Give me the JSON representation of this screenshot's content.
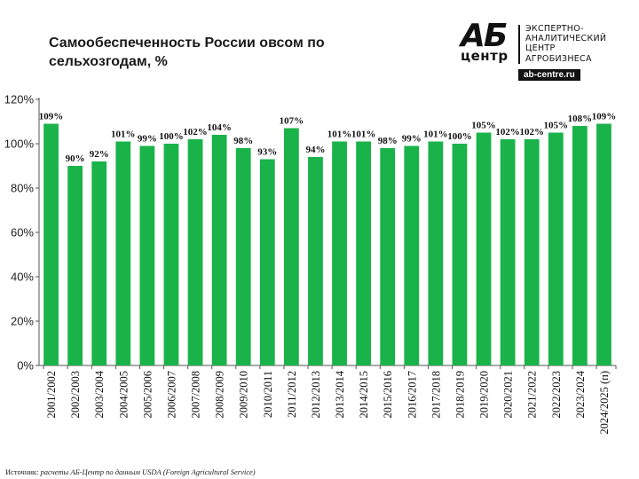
{
  "title": "Самообеспеченность России овсом по сельхозгодам, %",
  "logo": {
    "mark_letters": "АБ",
    "mark_word": "центр",
    "lines": [
      "ЭКСПЕРТНО-",
      "АНАЛИТИЧЕСКИЙ",
      "ЦЕНТР",
      "АГРОБИЗНЕСА"
    ],
    "site": "ab-centre.ru"
  },
  "source": {
    "label": "Источник:",
    "text": "расчеты АБ-Центр по данным USDA (Foreign Agricultural Service)"
  },
  "colors": {
    "bar": "#1ab34a",
    "axis": "#555555",
    "label": "#111111"
  },
  "chart_data": {
    "type": "bar",
    "categories": [
      "2001/2002",
      "2002/2003",
      "2003/2004",
      "2004/2005",
      "2005/2006",
      "2006/2007",
      "2007/2008",
      "2008/2009",
      "2009/2010",
      "2010/2011",
      "2011/2012",
      "2012/2013",
      "2013/2014",
      "2014/2015",
      "2015/2016",
      "2016/2017",
      "2017/2018",
      "2018/2019",
      "2019/2020",
      "2020/2021",
      "2021/2022",
      "2022/2023",
      "2023/2024",
      "2024/2025 (п)"
    ],
    "values": [
      109,
      90,
      92,
      101,
      99,
      100,
      102,
      104,
      98,
      93,
      107,
      94,
      101,
      101,
      98,
      99,
      101,
      100,
      105,
      102,
      102,
      105,
      108,
      109
    ],
    "value_labels": [
      "109%",
      "90%",
      "92%",
      "101%",
      "99%",
      "100%",
      "102%",
      "104%",
      "98%",
      "93%",
      "107%",
      "94%",
      "101%",
      "101%",
      "98%",
      "99%",
      "101%",
      "100%",
      "105%",
      "102%",
      "102%",
      "105%",
      "108%",
      "109%"
    ],
    "ylim": [
      0,
      120
    ],
    "yticks": [
      0,
      20,
      40,
      60,
      80,
      100,
      120
    ],
    "ytick_labels": [
      "0%",
      "20%",
      "40%",
      "60%",
      "80%",
      "100%",
      "120%"
    ],
    "grid": false,
    "legend": false
  }
}
